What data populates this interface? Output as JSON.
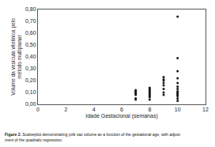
{
  "chart_data": {
    "type": "scatter",
    "xlabel": "Idade Gestacional (semanas)",
    "ylabel": "Volume da vesícula vitelínica pelo\nmétodo multiplanar",
    "x": [
      7,
      7,
      7,
      7,
      7,
      7,
      7,
      7,
      8,
      8,
      8,
      8,
      8,
      8,
      8,
      8,
      8,
      8,
      9,
      9,
      9,
      9,
      9,
      9,
      9,
      9,
      10,
      10,
      10,
      10,
      10,
      10,
      10,
      10,
      10,
      10,
      10,
      10,
      10,
      10
    ],
    "values": [
      0.04,
      0.05,
      0.08,
      0.09,
      0.1,
      0.1,
      0.11,
      0.12,
      0.04,
      0.06,
      0.07,
      0.08,
      0.09,
      0.1,
      0.11,
      0.12,
      0.13,
      0.14,
      0.08,
      0.1,
      0.13,
      0.16,
      0.18,
      0.2,
      0.21,
      0.23,
      0.03,
      0.05,
      0.07,
      0.08,
      0.09,
      0.1,
      0.11,
      0.13,
      0.15,
      0.18,
      0.22,
      0.28,
      0.39,
      0.74
    ],
    "color": "#1a1a1a",
    "marker": "circle",
    "xlim": [
      0,
      12
    ],
    "ylim": [
      0,
      0.8
    ],
    "xticks": [
      0,
      2,
      4,
      6,
      8,
      10,
      12
    ],
    "yticks": [
      {
        "value": 0,
        "label": "0,00"
      },
      {
        "value": 0.1,
        "label": "0,10"
      },
      {
        "value": 0.2,
        "label": "0,20"
      },
      {
        "value": 0.3,
        "label": "0,30"
      },
      {
        "value": 0.4,
        "label": "0,40"
      },
      {
        "value": 0.5,
        "label": "0,50"
      },
      {
        "value": 0.6,
        "label": "0,60"
      },
      {
        "value": 0.7,
        "label": "0,70"
      },
      {
        "value": 0.8,
        "label": "0,80"
      }
    ],
    "grid": false,
    "annotations": [
      "Figure 2.",
      " Scatterplot demonstrating yolk sac volume as a function of the gestational age, with adjust-\nment of the quadratic regression."
    ]
  }
}
